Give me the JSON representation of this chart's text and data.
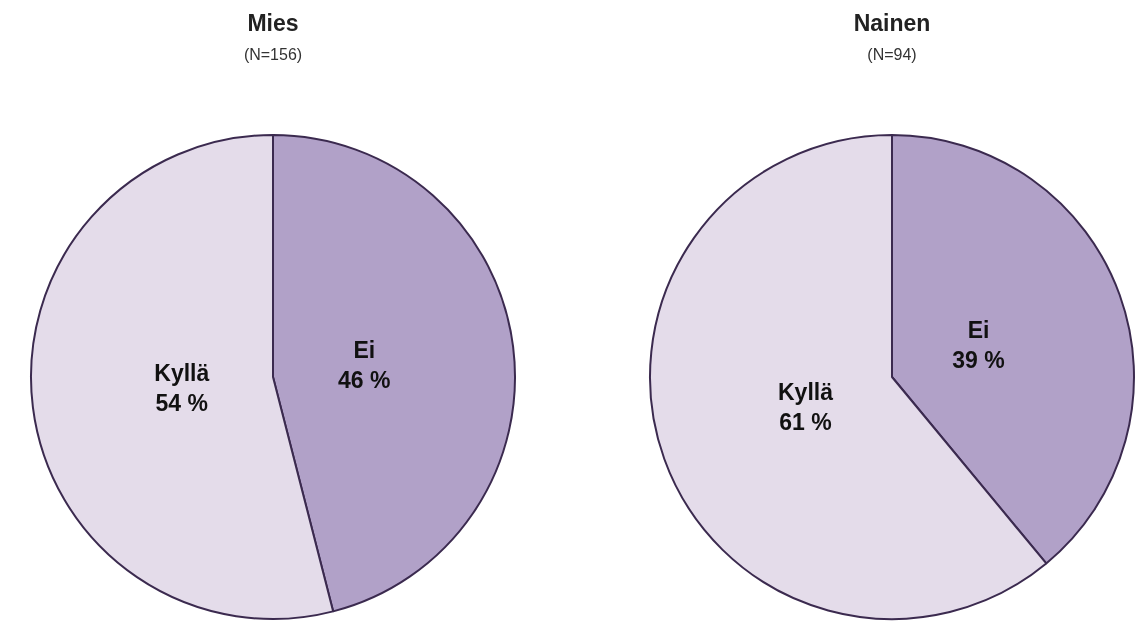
{
  "chart_data": [
    {
      "type": "pie",
      "title": "Mies",
      "subtitle": "(N=156)",
      "categories": [
        "Ei",
        "Kyllä"
      ],
      "values": [
        46,
        54
      ],
      "colors": [
        "#b1a1c8",
        "#e4dcea"
      ],
      "value_labels": [
        "46 %",
        "54 %"
      ],
      "legend": false
    },
    {
      "type": "pie",
      "title": "Nainen",
      "subtitle": "(N=94)",
      "categories": [
        "Ei",
        "Kyllä"
      ],
      "values": [
        39,
        61
      ],
      "colors": [
        "#b1a1c8",
        "#e4dcea"
      ],
      "value_labels": [
        "39 %",
        "61 %"
      ],
      "legend": false
    }
  ]
}
